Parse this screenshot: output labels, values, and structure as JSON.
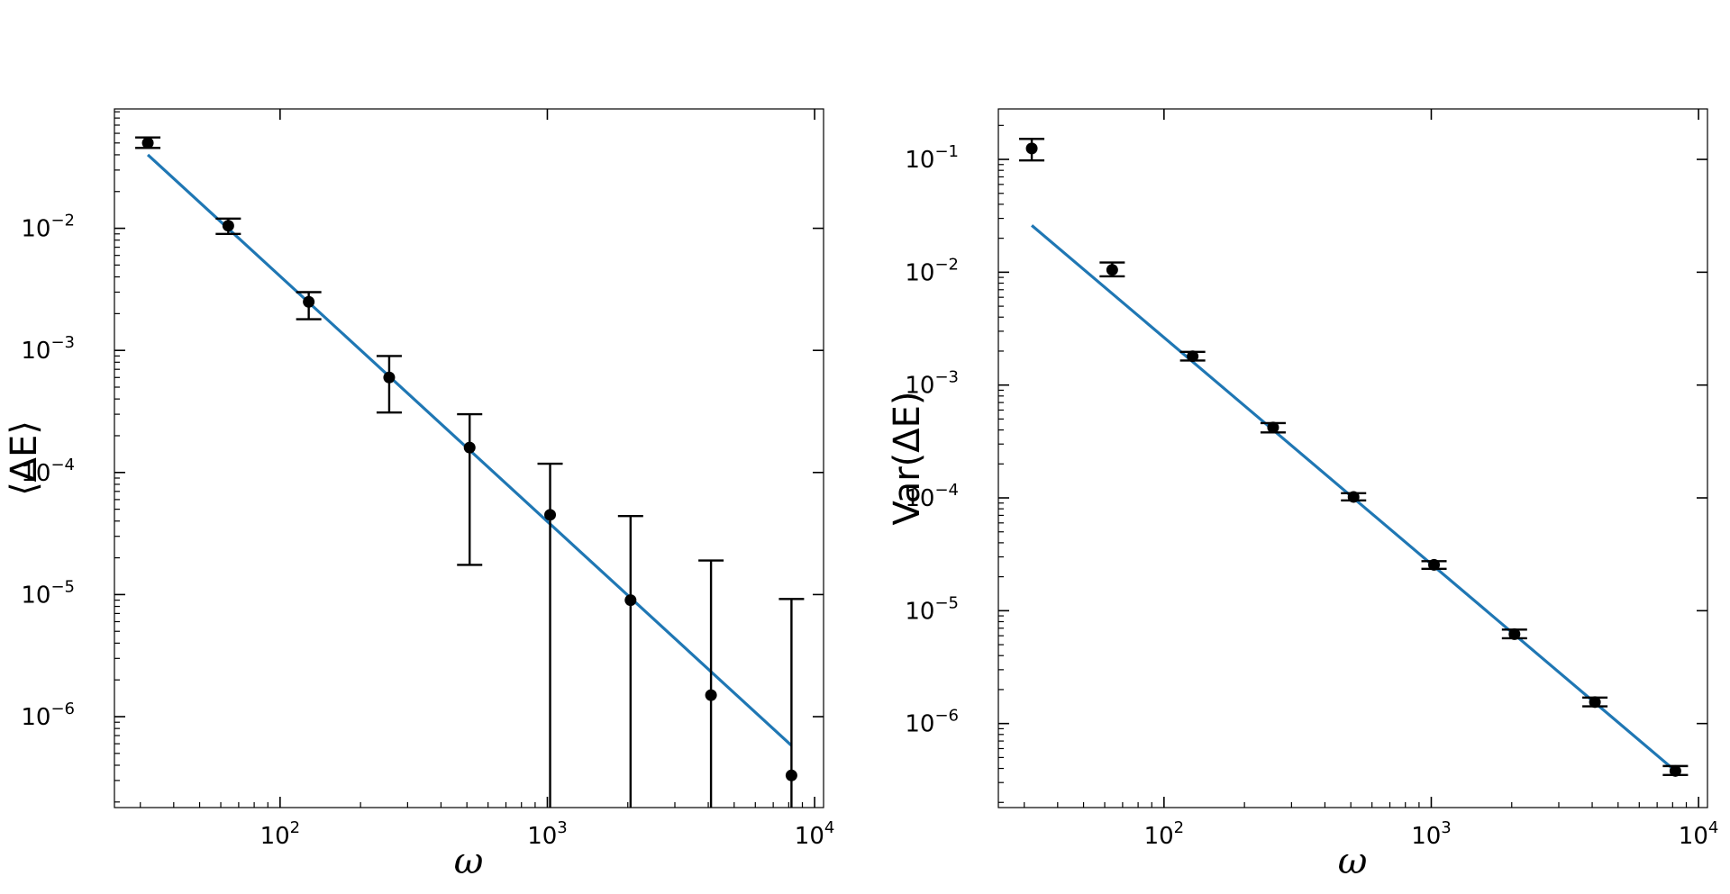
{
  "colors": {
    "fit_line": "#1f77b4",
    "markers": "#000000",
    "axes": "#000000",
    "background": "#ffffff"
  },
  "chart_data": [
    {
      "type": "scatter",
      "xscale": "log",
      "yscale": "log",
      "xlim": [
        24,
        10800
      ],
      "ylim": [
        1.8e-07,
        0.095
      ],
      "xlabel": "ω",
      "ylabel": "⟨ΔE⟩",
      "title": "",
      "grid": false,
      "ticks_direction": "in",
      "x_ticks": [
        {
          "value": 100,
          "base": "10",
          "exp": "2"
        },
        {
          "value": 1000,
          "base": "10",
          "exp": "3"
        },
        {
          "value": 10000,
          "base": "10",
          "exp": "4"
        }
      ],
      "y_ticks": [
        {
          "value": 1e-06,
          "base": "10",
          "exp": "−6"
        },
        {
          "value": 1e-05,
          "base": "10",
          "exp": "−5"
        },
        {
          "value": 0.0001,
          "base": "10",
          "exp": "−4"
        },
        {
          "value": 0.001,
          "base": "10",
          "exp": "−3"
        },
        {
          "value": 0.01,
          "base": "10",
          "exp": "−2"
        }
      ],
      "series": [
        {
          "kind": "errorbar",
          "color": "#000000",
          "points": [
            {
              "x": 32,
              "y": 0.05,
              "yerr_low": 0.0455,
              "yerr_high": 0.0555
            },
            {
              "x": 64,
              "y": 0.0105,
              "yerr_low": 0.009,
              "yerr_high": 0.012
            },
            {
              "x": 128,
              "y": 0.0025,
              "yerr_low": 0.0018,
              "yerr_high": 0.003
            },
            {
              "x": 256,
              "y": 0.0006,
              "yerr_low": 0.00031,
              "yerr_high": 0.0009
            },
            {
              "x": 512,
              "y": 0.00016,
              "yerr_low": 1.75e-05,
              "yerr_high": 0.0003
            },
            {
              "x": 1024,
              "y": 4.5e-05,
              "yerr_low": 1e-09,
              "yerr_high": 0.000118
            },
            {
              "x": 2048,
              "y": 9e-06,
              "yerr_low": 1e-09,
              "yerr_high": 4.4e-05
            },
            {
              "x": 4096,
              "y": 1.5e-06,
              "yerr_low": 1e-09,
              "yerr_high": 1.9e-05
            },
            {
              "x": 8192,
              "y": 3.3e-07,
              "yerr_low": 1e-09,
              "yerr_high": 9.2e-06
            }
          ]
        },
        {
          "kind": "fit_line",
          "color": "#1f77b4",
          "x": [
            32,
            8192
          ],
          "y": [
            0.04,
            5.8e-07
          ]
        }
      ]
    },
    {
      "type": "scatter",
      "xscale": "log",
      "yscale": "log",
      "xlim": [
        24,
        10800
      ],
      "ylim": [
        1.8e-07,
        0.28
      ],
      "xlabel": "ω",
      "ylabel": "Var(ΔE)",
      "title": "",
      "grid": false,
      "ticks_direction": "in",
      "x_ticks": [
        {
          "value": 100,
          "base": "10",
          "exp": "2"
        },
        {
          "value": 1000,
          "base": "10",
          "exp": "3"
        },
        {
          "value": 10000,
          "base": "10",
          "exp": "4"
        }
      ],
      "y_ticks": [
        {
          "value": 1e-06,
          "base": "10",
          "exp": "−6"
        },
        {
          "value": 1e-05,
          "base": "10",
          "exp": "−5"
        },
        {
          "value": 0.0001,
          "base": "10",
          "exp": "−4"
        },
        {
          "value": 0.001,
          "base": "10",
          "exp": "−3"
        },
        {
          "value": 0.01,
          "base": "10",
          "exp": "−2"
        },
        {
          "value": 0.1,
          "base": "10",
          "exp": "−1"
        }
      ],
      "series": [
        {
          "kind": "errorbar",
          "color": "#000000",
          "points": [
            {
              "x": 32,
              "y": 0.125,
              "yerr_low": 0.098,
              "yerr_high": 0.152
            },
            {
              "x": 64,
              "y": 0.0105,
              "yerr_low": 0.0092,
              "yerr_high": 0.0122
            },
            {
              "x": 128,
              "y": 0.0018,
              "yerr_low": 0.00165,
              "yerr_high": 0.00197
            },
            {
              "x": 256,
              "y": 0.00042,
              "yerr_low": 0.00038,
              "yerr_high": 0.00046
            },
            {
              "x": 512,
              "y": 0.000102,
              "yerr_low": 9.5e-05,
              "yerr_high": 0.00011
            },
            {
              "x": 1024,
              "y": 2.55e-05,
              "yerr_low": 2.35e-05,
              "yerr_high": 2.75e-05
            },
            {
              "x": 2048,
              "y": 6.2e-06,
              "yerr_low": 5.7e-06,
              "yerr_high": 6.8e-06
            },
            {
              "x": 4096,
              "y": 1.55e-06,
              "yerr_low": 1.42e-06,
              "yerr_high": 1.7e-06
            },
            {
              "x": 8192,
              "y": 3.8e-07,
              "yerr_low": 3.5e-07,
              "yerr_high": 4.2e-07
            }
          ]
        },
        {
          "kind": "fit_line",
          "color": "#1f77b4",
          "x": [
            32,
            8192
          ],
          "y": [
            0.026,
            3.8e-07
          ]
        }
      ]
    }
  ]
}
